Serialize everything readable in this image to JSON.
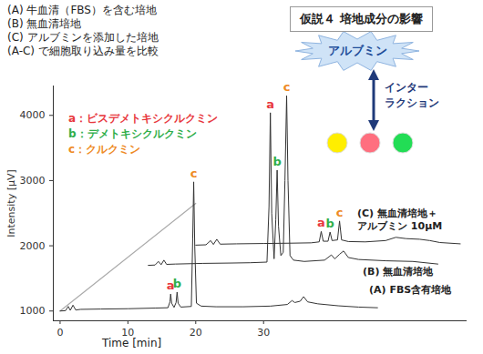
{
  "chart_data": {
    "type": "line",
    "x_label": "Time [min]",
    "y_label": "Intensity [μV]",
    "xlim": [
      -1,
      60
    ],
    "xticks": [
      0,
      10,
      20,
      30
    ],
    "ylim": [
      850,
      4450
    ],
    "yticks": [
      1000,
      2000,
      3000,
      4000
    ],
    "series": [
      {
        "name": "(A) FBS含有培地",
        "color": "#333333",
        "x": [
          0,
          0.8,
          1.2,
          1.5,
          1.9,
          2.3,
          3,
          6,
          10,
          14,
          15.9,
          16.2,
          16.3,
          16.45,
          16.8,
          17.1,
          17.25,
          17.4,
          17.8,
          19.35,
          19.55,
          19.7,
          19.85,
          20.1,
          20.8,
          23,
          27,
          31,
          33.5,
          34.2,
          34.6,
          35.4,
          35.9,
          36.5,
          38,
          41,
          44,
          46.8
        ],
        "values": [
          1000,
          1005,
          1070,
          1010,
          1090,
          1015,
          1025,
          1030,
          1035,
          1045,
          1050,
          1140,
          1260,
          1120,
          1055,
          1130,
          1290,
          1120,
          1060,
          1070,
          2100,
          2980,
          2000,
          1120,
          1075,
          1065,
          1065,
          1075,
          1100,
          1160,
          1130,
          1150,
          1220,
          1140,
          1110,
          1080,
          1060,
          1050
        ]
      },
      {
        "name": "(B) 無血清培地",
        "color": "#333333",
        "x": [
          13,
          14,
          14.5,
          14.9,
          15.3,
          15.7,
          17,
          21,
          25,
          28,
          30.5,
          30.8,
          31.0,
          31.2,
          31.55,
          31.8,
          32.0,
          32.2,
          32.55,
          32.9,
          33.15,
          33.4,
          33.6,
          33.9,
          34.4,
          36,
          39,
          40,
          40.5,
          41.2,
          41.8,
          42.5,
          44,
          48,
          52,
          55.7
        ],
        "values": [
          1700,
          1705,
          1760,
          1710,
          1780,
          1715,
          1720,
          1730,
          1735,
          1740,
          1750,
          2600,
          4040,
          2500,
          1800,
          2400,
          3160,
          2300,
          1850,
          1900,
          3000,
          4300,
          3000,
          1850,
          1780,
          1760,
          1780,
          1860,
          1800,
          1870,
          1920,
          1820,
          1790,
          1770,
          1760,
          1720
        ]
      },
      {
        "name": "(C) 無血清培地＋\nアルブミン 10μM",
        "color": "#333333",
        "x": [
          20,
          21.5,
          22.2,
          22.6,
          23.1,
          23.6,
          26,
          30,
          34,
          37,
          38.2,
          38.5,
          38.8,
          39.5,
          39.8,
          40.1,
          40.9,
          41.2,
          41.5,
          42.5,
          45,
          48,
          49.5,
          51,
          53,
          54.5,
          56,
          59
        ],
        "values": [
          2010,
          2015,
          2080,
          2020,
          2100,
          2025,
          2030,
          2035,
          2040,
          2045,
          2060,
          2220,
          2070,
          2070,
          2210,
          2080,
          2090,
          2380,
          2090,
          2065,
          2060,
          2080,
          2130,
          2110,
          2100,
          2080,
          2050,
          2030
        ]
      }
    ],
    "peak_labels": [
      {
        "label": "a",
        "x": 16.3,
        "y": 1260
      },
      {
        "label": "b",
        "x": 17.25,
        "y": 1290
      },
      {
        "label": "c",
        "x": 19.7,
        "y": 2980
      },
      {
        "label": "a",
        "x": 31.0,
        "y": 4040
      },
      {
        "label": "b",
        "x": 32.0,
        "y": 3160
      },
      {
        "label": "c",
        "x": 33.4,
        "y": 4300
      },
      {
        "label": "a",
        "x": 38.5,
        "y": 2220
      },
      {
        "label": "b",
        "x": 39.8,
        "y": 2210
      },
      {
        "label": "c",
        "x": 41.2,
        "y": 2380
      }
    ],
    "peak_legend": [
      {
        "key": "a",
        "text": "a：ビスデメトキシクルクミン",
        "color": "#e8383d"
      },
      {
        "key": "b",
        "text": "b：デメトキシクルクミン",
        "color": "#2fae4a"
      },
      {
        "key": "c",
        "text": "c：クルクミン",
        "color": "#ee8a24"
      }
    ],
    "guide_line": {
      "x": [
        0,
        20
      ],
      "values": [
        1000,
        2650
      ],
      "color": "#aaaaaa"
    },
    "annotations": {
      "conditions": [
        "(A) 牛血清（FBS）を含む培地",
        "(B) 無血清培地",
        "(C) アルブミンを添加した培地",
        "(A-C) で細胞取り込み量を比較"
      ],
      "hypothesis": "仮説４ 培地成分の影響",
      "protein": "アルブミン",
      "interaction": "インター\nラクション",
      "molecule_colors": [
        "#ffee00",
        "#ff6f7f",
        "#22dd55"
      ]
    }
  }
}
